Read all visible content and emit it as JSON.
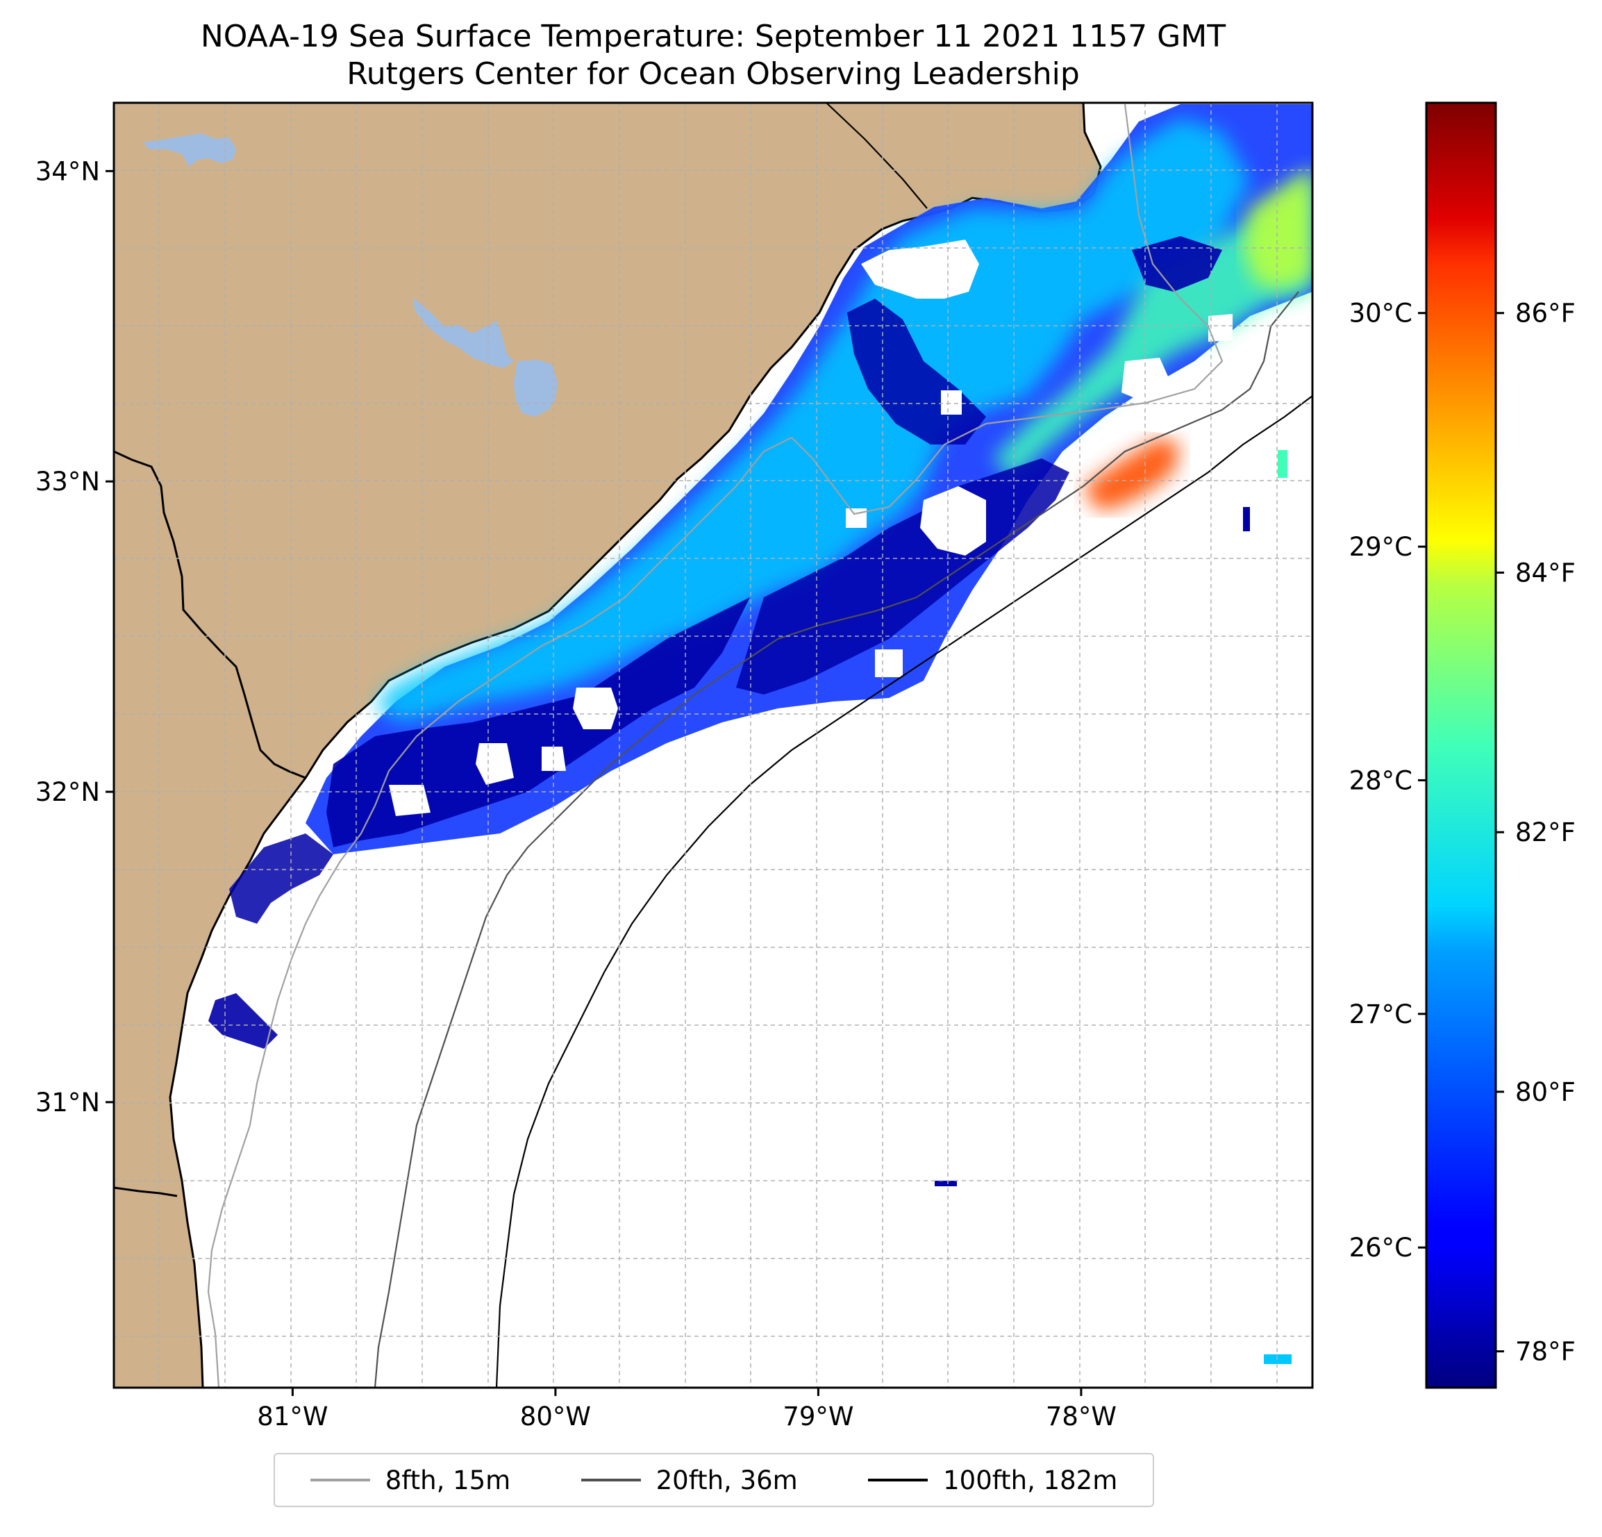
{
  "title": {
    "line1": "NOAA-19 Sea Surface Temperature: September 11 2021 1157 GMT",
    "line2": "Rutgers Center for Ocean Observing Leadership"
  },
  "map": {
    "lon_range": [
      -81.68,
      -77.12
    ],
    "lat_range": [
      30.08,
      34.22
    ],
    "lat_ticks": [
      {
        "value": 34,
        "label": "34°N"
      },
      {
        "value": 33,
        "label": "33°N"
      },
      {
        "value": 32,
        "label": "32°N"
      },
      {
        "value": 31,
        "label": "31°N"
      }
    ],
    "lon_ticks": [
      {
        "value": -81,
        "label": "81°W"
      },
      {
        "value": -80,
        "label": "80°W"
      },
      {
        "value": -79,
        "label": "79°W"
      },
      {
        "value": -78,
        "label": "78°W"
      }
    ],
    "land_color": "#cfb28b",
    "water_body_color": "#9ebce2",
    "grid": true
  },
  "colorbar": {
    "colormap": "jet",
    "celsius_range": [
      25.4,
      30.9
    ],
    "celsius_ticks": [
      {
        "value": 26,
        "label": "26°C"
      },
      {
        "value": 27,
        "label": "27°C"
      },
      {
        "value": 28,
        "label": "28°C"
      },
      {
        "value": 29,
        "label": "29°C"
      },
      {
        "value": 30,
        "label": "30°C"
      }
    ],
    "fahrenheit_ticks": [
      {
        "value": 78,
        "label": "78°F"
      },
      {
        "value": 80,
        "label": "80°F"
      },
      {
        "value": 82,
        "label": "82°F"
      },
      {
        "value": 84,
        "label": "84°F"
      },
      {
        "value": 86,
        "label": "86°F"
      }
    ]
  },
  "legend": {
    "placement": "bottom-center",
    "items": [
      {
        "label": "8fth, 15m",
        "color": "#a0a0a0"
      },
      {
        "label": "20fth, 36m",
        "color": "#505050"
      },
      {
        "label": "100fth, 182m",
        "color": "#000000"
      }
    ]
  }
}
